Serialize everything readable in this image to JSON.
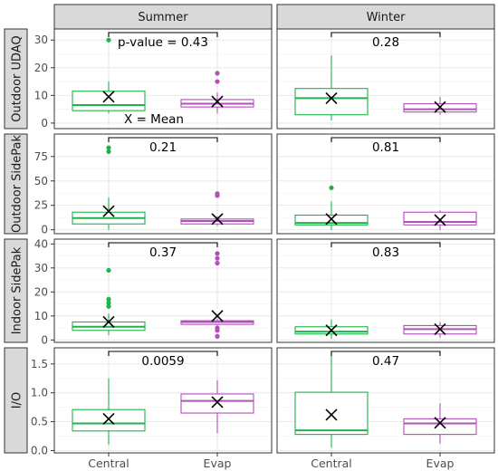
{
  "figure": {
    "columns": [
      "Summer",
      "Winter"
    ],
    "x_categories": [
      "Central",
      "Evap"
    ],
    "colors": {
      "Central": "#1fb24a",
      "Evap": "#b24fb8",
      "mean_marker": "#000000"
    },
    "legend_note": "X = Mean",
    "pvalue_prefix": "p-value = "
  },
  "chart_data": [
    {
      "type": "box",
      "row": "Outdoor UDAQ",
      "ylabel": "Outdoor UDAQ",
      "ylim": [
        -2,
        34
      ],
      "yticks": [
        0,
        10,
        20,
        30
      ],
      "panels": [
        {
          "season": "Summer",
          "pvalue": "0.43",
          "show_prefix": true,
          "show_legend_note": true,
          "boxes": [
            {
              "category": "Central",
              "whisker_low": 3.5,
              "q1": 4.5,
              "median": 6.5,
              "q3": 11.5,
              "whisker_high": 15,
              "mean": 9.5,
              "outliers": [
                30
              ]
            },
            {
              "category": "Evap",
              "whisker_low": 3.5,
              "q1": 5.8,
              "median": 7,
              "q3": 8.5,
              "whisker_high": 11,
              "mean": 7.8,
              "outliers": [
                15,
                18
              ]
            }
          ]
        },
        {
          "season": "Winter",
          "pvalue": "0.28",
          "show_prefix": false,
          "show_legend_note": false,
          "boxes": [
            {
              "category": "Central",
              "whisker_low": 1,
              "q1": 3,
              "median": 9,
              "q3": 12.5,
              "whisker_high": 24.5,
              "mean": 9,
              "outliers": []
            },
            {
              "category": "Evap",
              "whisker_low": 3,
              "q1": 4,
              "median": 5,
              "q3": 7,
              "whisker_high": 9.5,
              "mean": 5.8,
              "outliers": []
            }
          ]
        }
      ]
    },
    {
      "type": "box",
      "row": "Outdoor SidePak",
      "ylabel": "Outdoor SidePak",
      "ylim": [
        -4,
        98
      ],
      "yticks": [
        0,
        25,
        50,
        75
      ],
      "panels": [
        {
          "season": "Summer",
          "pvalue": "0.21",
          "show_prefix": false,
          "show_legend_note": false,
          "boxes": [
            {
              "category": "Central",
              "whisker_low": 0,
              "q1": 6,
              "median": 12,
              "q3": 18,
              "whisker_high": 33,
              "mean": 19,
              "outliers": [
                80,
                84
              ]
            },
            {
              "category": "Evap",
              "whisker_low": 4,
              "q1": 6,
              "median": 9,
              "q3": 11,
              "whisker_high": 14,
              "mean": 11,
              "outliers": [
                35,
                37
              ]
            }
          ]
        },
        {
          "season": "Winter",
          "pvalue": "0.81",
          "show_prefix": false,
          "show_legend_note": false,
          "boxes": [
            {
              "category": "Central",
              "whisker_low": 0,
              "q1": 5,
              "median": 7,
              "q3": 15,
              "whisker_high": 29,
              "mean": 11,
              "outliers": [
                43
              ]
            },
            {
              "category": "Evap",
              "whisker_low": 0,
              "q1": 5,
              "median": 8,
              "q3": 18,
              "whisker_high": 20,
              "mean": 10,
              "outliers": []
            }
          ]
        }
      ]
    },
    {
      "type": "box",
      "row": "Indoor SidePak",
      "ylabel": "Indoor SidePak",
      "ylim": [
        -1,
        42
      ],
      "yticks": [
        0,
        10,
        20,
        30,
        40
      ],
      "panels": [
        {
          "season": "Summer",
          "pvalue": "0.37",
          "show_prefix": false,
          "show_legend_note": false,
          "boxes": [
            {
              "category": "Central",
              "whisker_low": 2,
              "q1": 4,
              "median": 5.5,
              "q3": 7.5,
              "whisker_high": 11,
              "mean": 7.5,
              "outliers": [
                14,
                15.5,
                17,
                29
              ]
            },
            {
              "category": "Evap",
              "whisker_low": 6,
              "q1": 6.5,
              "median": 7.5,
              "q3": 8,
              "whisker_high": 9,
              "mean": 10,
              "outliers": [
                1.5,
                4,
                5,
                32,
                34,
                36
              ]
            }
          ]
        },
        {
          "season": "Winter",
          "pvalue": "0.83",
          "show_prefix": false,
          "show_legend_note": false,
          "boxes": [
            {
              "category": "Central",
              "whisker_low": 0.5,
              "q1": 2.5,
              "median": 3.5,
              "q3": 5.5,
              "whisker_high": 8.5,
              "mean": 4,
              "outliers": []
            },
            {
              "category": "Evap",
              "whisker_low": 1,
              "q1": 2.5,
              "median": 4.5,
              "q3": 6,
              "whisker_high": 7.5,
              "mean": 4.5,
              "outliers": []
            }
          ]
        }
      ]
    },
    {
      "type": "box",
      "row": "I/O",
      "ylabel": "I/O",
      "ylim": [
        -0.04,
        1.78
      ],
      "yticks": [
        0.0,
        0.5,
        1.0,
        1.5
      ],
      "panels": [
        {
          "season": "Summer",
          "pvalue": "0.0059",
          "show_prefix": false,
          "show_legend_note": false,
          "boxes": [
            {
              "category": "Central",
              "whisker_low": 0.1,
              "q1": 0.34,
              "median": 0.47,
              "q3": 0.71,
              "whisker_high": 1.25,
              "mean": 0.55,
              "outliers": []
            },
            {
              "category": "Evap",
              "whisker_low": 0.3,
              "q1": 0.65,
              "median": 0.86,
              "q3": 0.98,
              "whisker_high": 1.22,
              "mean": 0.84,
              "outliers": []
            }
          ]
        },
        {
          "season": "Winter",
          "pvalue": "0.47",
          "show_prefix": false,
          "show_legend_note": false,
          "boxes": [
            {
              "category": "Central",
              "whisker_low": 0.05,
              "q1": 0.28,
              "median": 0.35,
              "q3": 1.01,
              "whisker_high": 1.68,
              "mean": 0.62,
              "outliers": []
            },
            {
              "category": "Evap",
              "whisker_low": 0.12,
              "q1": 0.28,
              "median": 0.47,
              "q3": 0.55,
              "whisker_high": 0.82,
              "mean": 0.48,
              "outliers": []
            }
          ]
        }
      ]
    }
  ]
}
